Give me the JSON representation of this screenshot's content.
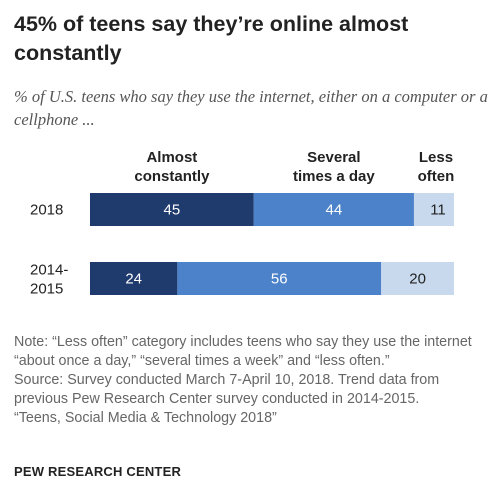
{
  "header": {
    "title": "45% of teens say they’re online almost constantly",
    "subtitle": "% of U.S. teens who say they use the internet, either on a computer or a cellphone ..."
  },
  "chart_data": {
    "type": "bar",
    "orientation": "horizontal",
    "stacked": true,
    "categories": [
      [
        "2018"
      ],
      [
        "2014-",
        "2015"
      ]
    ],
    "series": [
      {
        "name": [
          "Almost",
          "constantly"
        ],
        "values": [
          45,
          24
        ],
        "color": "#1f3a6d",
        "label_color": "#ffffff"
      },
      {
        "name": [
          "Several",
          "times a day"
        ],
        "values": [
          44,
          56
        ],
        "color": "#4c82c9",
        "label_color": "#ffffff"
      },
      {
        "name": [
          "Less",
          "often"
        ],
        "values": [
          11,
          20
        ],
        "color": "#c8d9ee",
        "label_color": "#222222"
      }
    ],
    "xlim": [
      0,
      100
    ],
    "grid": false,
    "legend": "column headers above bars"
  },
  "footer": {
    "note": "Note: “Less often” category includes teens who say they use the internet “about once a day,” “several times a week” and “less often.”",
    "source": "Source: Survey conducted March 7-April 10, 2018. Trend data from previous Pew Research Center survey conducted in 2014-2015.",
    "report": "“Teens, Social Media & Technology 2018”",
    "brand": "PEW RESEARCH CENTER"
  }
}
